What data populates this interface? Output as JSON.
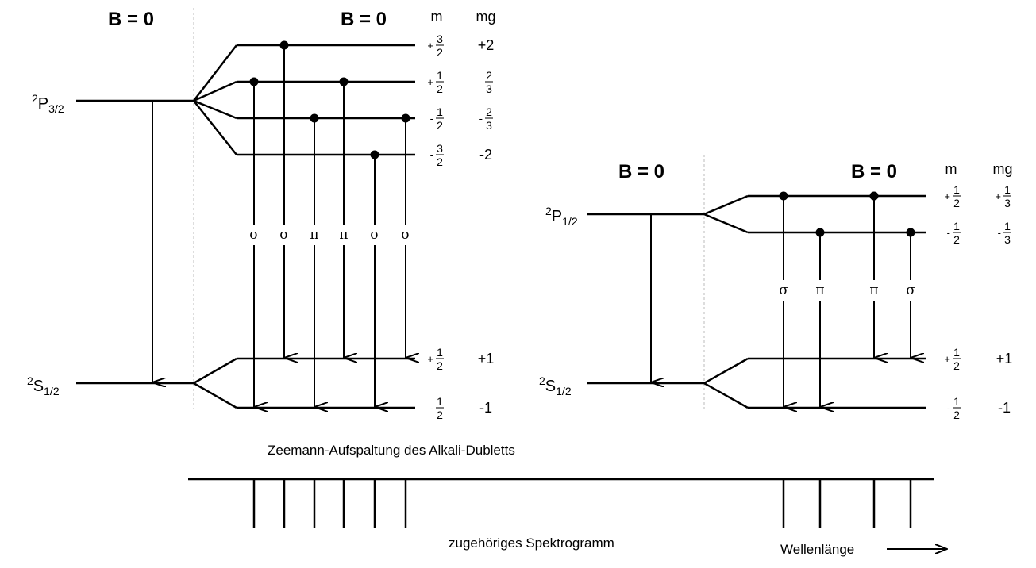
{
  "diagram": {
    "caption": "Zeemann-Aufspaltung des Alkali-Dubletts",
    "left_panel": {
      "field_off_label": "B = 0",
      "field_on_label": "B = 0",
      "col_m": "m",
      "col_mg": "mg",
      "upper_term": {
        "sup": "2",
        "letter": "P",
        "sub": "3/2"
      },
      "lower_term": {
        "sup": "2",
        "letter": "S",
        "sub": "1/2"
      },
      "upper_sublevels": [
        {
          "m": {
            "sign": "+",
            "num": "3",
            "den": "2"
          },
          "mg": {
            "text": "+2"
          }
        },
        {
          "m": {
            "sign": "+",
            "num": "1",
            "den": "2"
          },
          "mg": {
            "sign": "",
            "num": "2",
            "den": "3"
          }
        },
        {
          "m": {
            "sign": "-",
            "num": "1",
            "den": "2"
          },
          "mg": {
            "sign": "-",
            "num": "2",
            "den": "3"
          }
        },
        {
          "m": {
            "sign": "-",
            "num": "3",
            "den": "2"
          },
          "mg": {
            "text": "-2"
          }
        }
      ],
      "lower_sublevels": [
        {
          "m": {
            "sign": "+",
            "num": "1",
            "den": "2"
          },
          "mg": {
            "text": "+1"
          }
        },
        {
          "m": {
            "sign": "-",
            "num": "1",
            "den": "2"
          },
          "mg": {
            "text": "-1"
          }
        }
      ],
      "transitions": [
        {
          "label": "σ",
          "from": 1,
          "to": 1
        },
        {
          "label": "σ",
          "from": 0,
          "to": 0
        },
        {
          "label": "π",
          "from": 2,
          "to": 1
        },
        {
          "label": "π",
          "from": 1,
          "to": 0
        },
        {
          "label": "σ",
          "from": 3,
          "to": 1
        },
        {
          "label": "σ",
          "from": 2,
          "to": 0
        }
      ]
    },
    "right_panel": {
      "field_off_label": "B = 0",
      "field_on_label": "B = 0",
      "col_m": "m",
      "col_mg": "mg",
      "upper_term": {
        "sup": "2",
        "letter": "P",
        "sub": "1/2"
      },
      "lower_term": {
        "sup": "2",
        "letter": "S",
        "sub": "1/2"
      },
      "upper_sublevels": [
        {
          "m": {
            "sign": "+",
            "num": "1",
            "den": "2"
          },
          "mg": {
            "sign": "+",
            "num": "1",
            "den": "3"
          }
        },
        {
          "m": {
            "sign": "-",
            "num": "1",
            "den": "2"
          },
          "mg": {
            "sign": "-",
            "num": "1",
            "den": "3"
          }
        }
      ],
      "lower_sublevels": [
        {
          "m": {
            "sign": "+",
            "num": "1",
            "den": "2"
          },
          "mg": {
            "text": "+1"
          }
        },
        {
          "m": {
            "sign": "-",
            "num": "1",
            "den": "2"
          },
          "mg": {
            "text": "-1"
          }
        }
      ],
      "transitions": [
        {
          "label": "σ",
          "from": 0,
          "to": 1
        },
        {
          "label": "π",
          "from": 1,
          "to": 1
        },
        {
          "label": "π",
          "from": 0,
          "to": 0
        },
        {
          "label": "σ",
          "from": 1,
          "to": 0
        }
      ]
    },
    "spectrogram": {
      "caption": "zugehöriges Spektrogramm",
      "axis_label": "Wellenlänge"
    }
  }
}
